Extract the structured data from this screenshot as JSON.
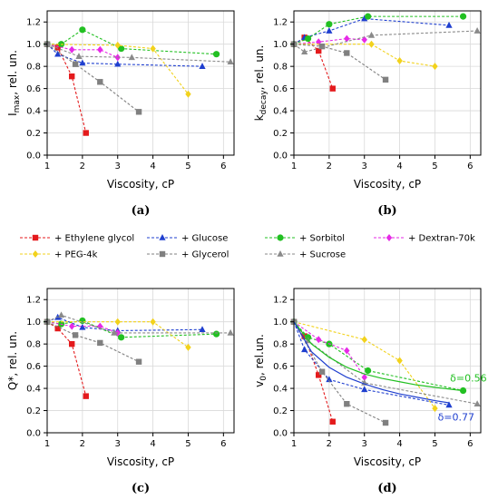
{
  "colors": {
    "Ethylene glycol": "#e41a1c",
    "Glucose": "#1f3fcf",
    "Sorbitol": "#22c022",
    "Dextran-70k": "#e62ae6",
    "PEG-4k": "#f2d21c",
    "Glycerol": "#808080",
    "Sucrose": "#8a8a8a"
  },
  "markers": {
    "Ethylene glycol": "square",
    "Glucose": "triangle",
    "Sorbitol": "circle",
    "Dextran-70k": "diamond",
    "PEG-4k": "diamond",
    "Glycerol": "square",
    "Sucrose": "triangle"
  },
  "legend": {
    "entries": [
      {
        "series": "Ethylene glycol",
        "label": "+ Ethylene glycol"
      },
      {
        "series": "Glucose",
        "label": "+ Glucose"
      },
      {
        "series": "Sorbitol",
        "label": "+ Sorbitol"
      },
      {
        "series": "Dextran-70k",
        "label": "+ Dextran-70k"
      },
      {
        "series": "PEG-4k",
        "label": "+ PEG-4k"
      },
      {
        "series": "Glycerol",
        "label": "+ Glycerol"
      },
      {
        "series": "Sucrose",
        "label": "+ Sucrose"
      }
    ]
  },
  "chart_data": [
    {
      "type": "line",
      "panel": "(a)",
      "xlabel": "Viscosity, cP",
      "ylabel_main": "I",
      "ylabel_sub": "max",
      "ylabel_rest": ", rel. un.",
      "xlim": [
        1,
        6.3
      ],
      "ylim": [
        0,
        1.3
      ],
      "xticks": [
        1,
        2,
        3,
        4,
        5,
        6
      ],
      "yticks": [
        0.0,
        0.2,
        0.4,
        0.6,
        0.8,
        1.0,
        1.2
      ],
      "grid": true,
      "series": [
        {
          "name": "Ethylene glycol",
          "x": [
            1.0,
            1.3,
            1.7,
            2.1
          ],
          "y": [
            1.0,
            0.97,
            0.71,
            0.2
          ]
        },
        {
          "name": "Glucose",
          "x": [
            1.0,
            1.3,
            2.0,
            3.0,
            5.4
          ],
          "y": [
            1.0,
            0.91,
            0.83,
            0.82,
            0.8
          ]
        },
        {
          "name": "Sorbitol",
          "x": [
            1.0,
            1.4,
            2.0,
            3.1,
            5.8
          ],
          "y": [
            1.0,
            1.0,
            1.13,
            0.96,
            0.91
          ]
        },
        {
          "name": "Dextran-70k",
          "x": [
            1.0,
            1.7,
            2.5,
            3.0
          ],
          "y": [
            1.0,
            0.95,
            0.95,
            0.88
          ]
        },
        {
          "name": "PEG-4k",
          "x": [
            1.0,
            3.0,
            4.0,
            5.0
          ],
          "y": [
            1.0,
            0.99,
            0.96,
            0.55
          ]
        },
        {
          "name": "Glycerol",
          "x": [
            1.0,
            1.8,
            2.5,
            3.6
          ],
          "y": [
            1.0,
            0.82,
            0.66,
            0.39
          ]
        },
        {
          "name": "Sucrose",
          "x": [
            1.0,
            1.9,
            3.4,
            6.2
          ],
          "y": [
            1.0,
            0.89,
            0.88,
            0.84
          ]
        }
      ]
    },
    {
      "type": "line",
      "panel": "(b)",
      "xlabel": "Viscosity, cP",
      "ylabel_main": "k",
      "ylabel_sub": "decay",
      "ylabel_rest": ", rel. un.",
      "xlim": [
        1,
        6.3
      ],
      "ylim": [
        0,
        1.3
      ],
      "xticks": [
        1,
        2,
        3,
        4,
        5,
        6
      ],
      "yticks": [
        0.0,
        0.2,
        0.4,
        0.6,
        0.8,
        1.0,
        1.2
      ],
      "grid": true,
      "series": [
        {
          "name": "Ethylene glycol",
          "x": [
            1.0,
            1.3,
            1.7,
            2.1
          ],
          "y": [
            1.0,
            1.06,
            0.94,
            0.6
          ]
        },
        {
          "name": "Glucose",
          "x": [
            1.0,
            1.3,
            2.0,
            3.0,
            5.4
          ],
          "y": [
            1.0,
            1.06,
            1.12,
            1.23,
            1.17
          ]
        },
        {
          "name": "Sorbitol",
          "x": [
            1.0,
            1.4,
            2.0,
            3.1,
            5.8
          ],
          "y": [
            1.0,
            1.05,
            1.18,
            1.25,
            1.25
          ]
        },
        {
          "name": "Dextran-70k",
          "x": [
            1.0,
            1.7,
            2.5,
            3.0
          ],
          "y": [
            1.0,
            1.02,
            1.05,
            1.04
          ]
        },
        {
          "name": "PEG-4k",
          "x": [
            1.0,
            3.2,
            4.0,
            5.0
          ],
          "y": [
            1.0,
            1.0,
            0.85,
            0.8
          ]
        },
        {
          "name": "Glycerol",
          "x": [
            1.0,
            1.8,
            2.5,
            3.6
          ],
          "y": [
            1.0,
            0.98,
            0.92,
            0.68
          ]
        },
        {
          "name": "Sucrose",
          "x": [
            1.0,
            1.3,
            3.2,
            6.2
          ],
          "y": [
            1.0,
            0.93,
            1.08,
            1.12
          ]
        }
      ]
    },
    {
      "type": "line",
      "panel": "(c)",
      "xlabel": "Viscosity, cP",
      "ylabel_main": "Q*, rel. un.",
      "ylabel_sub": "",
      "ylabel_rest": "",
      "xlim": [
        1,
        6.3
      ],
      "ylim": [
        0,
        1.3
      ],
      "xticks": [
        1,
        2,
        3,
        4,
        5,
        6
      ],
      "yticks": [
        0.0,
        0.2,
        0.4,
        0.6,
        0.8,
        1.0,
        1.2
      ],
      "grid": true,
      "series": [
        {
          "name": "Ethylene glycol",
          "x": [
            1.0,
            1.3,
            1.7,
            2.1
          ],
          "y": [
            1.0,
            0.94,
            0.8,
            0.33
          ]
        },
        {
          "name": "Glucose",
          "x": [
            1.0,
            1.3,
            2.0,
            3.0,
            5.4
          ],
          "y": [
            1.0,
            1.04,
            0.95,
            0.92,
            0.93
          ]
        },
        {
          "name": "Sorbitol",
          "x": [
            1.0,
            1.4,
            2.0,
            3.1,
            5.8
          ],
          "y": [
            1.0,
            0.98,
            1.01,
            0.86,
            0.89
          ]
        },
        {
          "name": "Dextran-70k",
          "x": [
            1.0,
            1.7,
            2.5,
            3.0
          ],
          "y": [
            1.0,
            0.96,
            0.96,
            0.9
          ]
        },
        {
          "name": "PEG-4k",
          "x": [
            1.0,
            3.0,
            4.0,
            5.0
          ],
          "y": [
            1.0,
            1.0,
            1.0,
            0.77
          ]
        },
        {
          "name": "Glycerol",
          "x": [
            1.0,
            1.8,
            2.5,
            3.6
          ],
          "y": [
            1.0,
            0.88,
            0.81,
            0.64
          ]
        },
        {
          "name": "Sucrose",
          "x": [
            1.0,
            1.4,
            2.9,
            6.2
          ],
          "y": [
            1.0,
            1.06,
            0.9,
            0.9
          ]
        }
      ]
    },
    {
      "type": "line",
      "panel": "(d)",
      "xlabel": "Viscosity, cP",
      "ylabel_main": "v",
      "ylabel_sub": "0",
      "ylabel_rest": ", rel.un.",
      "xlim": [
        1,
        6.3
      ],
      "ylim": [
        0,
        1.3
      ],
      "xticks": [
        1,
        2,
        3,
        4,
        5,
        6
      ],
      "yticks": [
        0.0,
        0.2,
        0.4,
        0.6,
        0.8,
        1.0,
        1.2
      ],
      "grid": true,
      "series": [
        {
          "name": "Ethylene glycol",
          "x": [
            1.0,
            1.3,
            1.7,
            2.1
          ],
          "y": [
            1.0,
            0.87,
            0.52,
            0.1
          ]
        },
        {
          "name": "Glucose",
          "x": [
            1.0,
            1.3,
            2.0,
            3.0,
            5.4
          ],
          "y": [
            1.0,
            0.75,
            0.48,
            0.39,
            0.25
          ]
        },
        {
          "name": "Sorbitol",
          "x": [
            1.0,
            1.4,
            2.0,
            3.1,
            5.8
          ],
          "y": [
            1.0,
            0.86,
            0.8,
            0.56,
            0.38
          ]
        },
        {
          "name": "Dextran-70k",
          "x": [
            1.0,
            1.7,
            2.5,
            3.0
          ],
          "y": [
            1.0,
            0.84,
            0.74,
            0.5
          ]
        },
        {
          "name": "PEG-4k",
          "x": [
            1.0,
            3.0,
            4.0,
            5.0
          ],
          "y": [
            1.0,
            0.84,
            0.65,
            0.22
          ]
        },
        {
          "name": "Glycerol",
          "x": [
            1.0,
            1.8,
            2.5,
            3.6
          ],
          "y": [
            1.0,
            0.55,
            0.26,
            0.09
          ]
        },
        {
          "name": "Sucrose",
          "x": [
            1.0,
            1.4,
            3.0,
            6.2
          ],
          "y": [
            1.0,
            0.83,
            0.45,
            0.26
          ]
        }
      ],
      "fits": [
        {
          "name": "Sorbitol",
          "x": [
            1.0,
            1.5,
            2.0,
            2.5,
            3.0,
            3.5,
            4.0,
            4.5,
            5.0,
            5.5,
            5.8
          ],
          "y": [
            1.0,
            0.8,
            0.68,
            0.59,
            0.53,
            0.49,
            0.46,
            0.43,
            0.41,
            0.39,
            0.38
          ]
        },
        {
          "name": "Glucose",
          "x": [
            1.0,
            1.5,
            2.0,
            2.5,
            3.0,
            3.5,
            4.0,
            4.5,
            5.0,
            5.4
          ],
          "y": [
            1.0,
            0.73,
            0.59,
            0.5,
            0.44,
            0.39,
            0.35,
            0.32,
            0.29,
            0.27
          ]
        }
      ],
      "annotations": [
        {
          "text": "δ=0.56",
          "x": 5.95,
          "y": 0.46,
          "series": "Sorbitol"
        },
        {
          "text": "δ=0.77",
          "x": 5.6,
          "y": 0.11,
          "series": "Glucose"
        }
      ]
    }
  ]
}
